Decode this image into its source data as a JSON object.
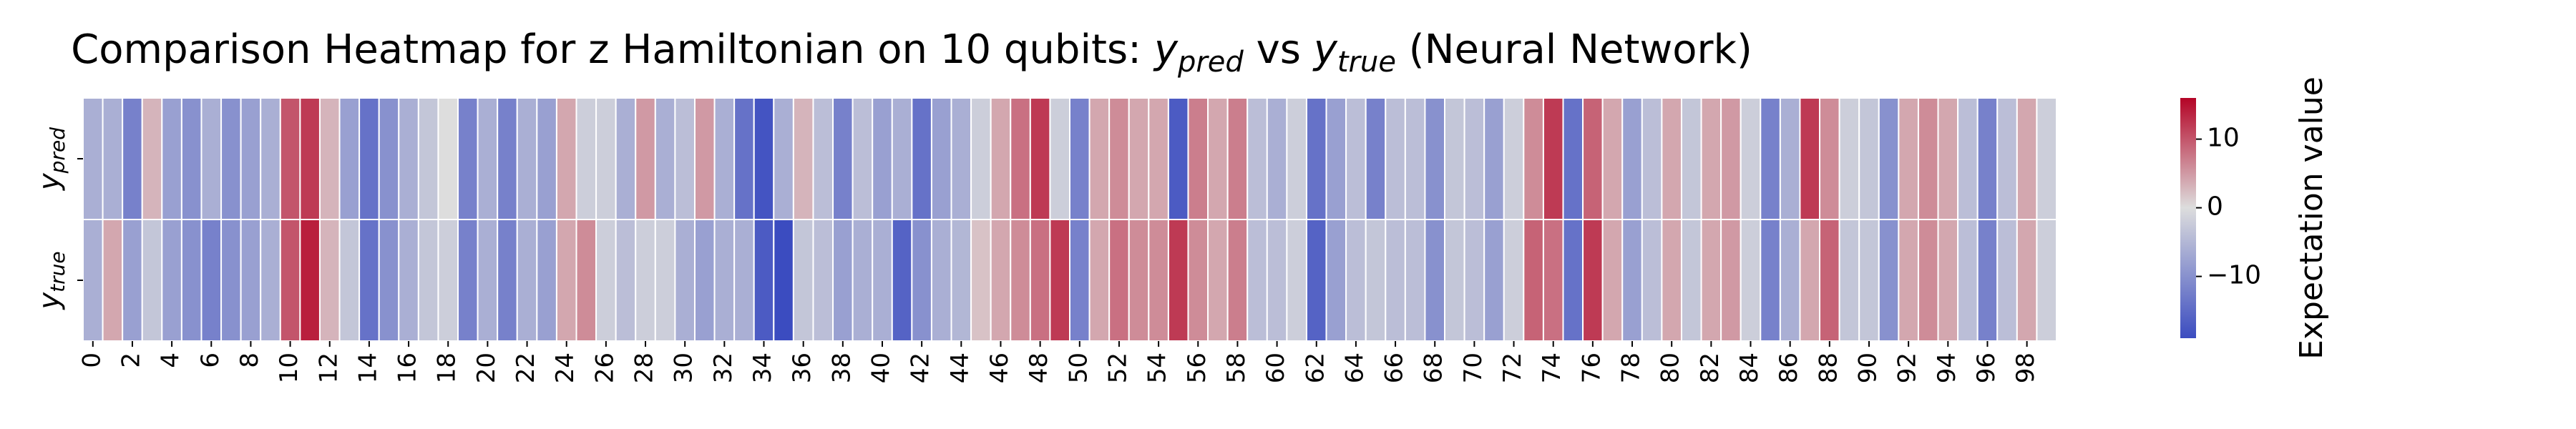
{
  "page": {
    "title_main": "Comparison Heatmap for z Hamiltonian on 10 qubits: ",
    "title_y": "y",
    "title_pred_sub": "pred",
    "title_vs": " vs ",
    "title_true_sub": "true",
    "title_tail": " (Neural Network)"
  },
  "row_labels": [
    {
      "base": "y",
      "sub": "pred"
    },
    {
      "base": "y",
      "sub": "true"
    }
  ],
  "colorbar": {
    "label": "Expectation value",
    "ticks": [
      10,
      0,
      -10
    ],
    "tick_labels": [
      "10",
      "0",
      "−10"
    ],
    "vmin": -19,
    "vmax": 16,
    "colormap": "coolwarm",
    "palette_low": "#3b4cc0",
    "palette_mid": "#dddddd",
    "palette_high": "#b40426"
  },
  "chart_data": {
    "type": "heatmap",
    "title": "Comparison Heatmap for z Hamiltonian on 10 qubits: y_pred vs y_true (Neural Network)",
    "rows": [
      "y_pred",
      "y_true"
    ],
    "x_tick_labels": [
      "0",
      "2",
      "4",
      "6",
      "8",
      "10",
      "12",
      "14",
      "16",
      "18",
      "20",
      "22",
      "24",
      "26",
      "28",
      "30",
      "32",
      "34",
      "36",
      "38",
      "40",
      "42",
      "44",
      "46",
      "48",
      "50",
      "52",
      "54",
      "56",
      "58",
      "60",
      "62",
      "64",
      "66",
      "68",
      "70",
      "72",
      "74",
      "76",
      "78",
      "80",
      "82",
      "84",
      "86",
      "88",
      "90",
      "92",
      "94",
      "96",
      "98"
    ],
    "values_pred": [
      -6,
      -6,
      -12,
      3,
      -8,
      -10,
      -6,
      -10,
      -8,
      -6,
      10,
      12,
      3,
      -8,
      -14,
      -10,
      -6,
      -3,
      0,
      -12,
      -6,
      -12,
      -6,
      -8,
      4,
      -2,
      -2,
      -6,
      5,
      -6,
      -4,
      5,
      -6,
      -14,
      -18,
      -6,
      3,
      -4,
      -12,
      -4,
      -8,
      -6,
      -14,
      -8,
      -6,
      -2,
      4,
      8,
      12,
      -2,
      -12,
      4,
      6,
      4,
      4,
      -17,
      7,
      4,
      7,
      -4,
      -6,
      -2,
      -14,
      -8,
      -4,
      -12,
      -4,
      -4,
      -10,
      -3,
      -4,
      -8,
      -2,
      6,
      12,
      -14,
      9,
      4,
      -8,
      -4,
      4,
      -3,
      4,
      5,
      -2,
      -12,
      -6,
      12,
      6,
      -2,
      -3,
      -10,
      4,
      6,
      4,
      -4,
      -12,
      -4,
      4,
      -2
    ],
    "values_true": [
      -6,
      4,
      -8,
      -3,
      -8,
      -10,
      -12,
      -10,
      -8,
      -6,
      10,
      14,
      3,
      -3,
      -14,
      -10,
      -6,
      -3,
      -2,
      -12,
      -6,
      -12,
      -6,
      -8,
      4,
      6,
      -2,
      -4,
      -2,
      -2,
      -6,
      -8,
      -6,
      -6,
      -17,
      -19,
      -3,
      -4,
      -8,
      -6,
      -6,
      -16,
      -10,
      -6,
      -5,
      2,
      4,
      6,
      8,
      12,
      -12,
      4,
      8,
      6,
      6,
      12,
      6,
      4,
      7,
      -4,
      -4,
      -2,
      -16,
      -8,
      -4,
      -3,
      -4,
      -4,
      -10,
      -3,
      -4,
      -8,
      -2,
      9,
      8,
      -14,
      12,
      4,
      -8,
      -4,
      4,
      -3,
      4,
      5,
      -2,
      -12,
      -6,
      4,
      9,
      -3,
      -3,
      -10,
      4,
      6,
      4,
      -4,
      -12,
      -4,
      4,
      -2
    ],
    "zmin": -19,
    "zmax": 16
  }
}
